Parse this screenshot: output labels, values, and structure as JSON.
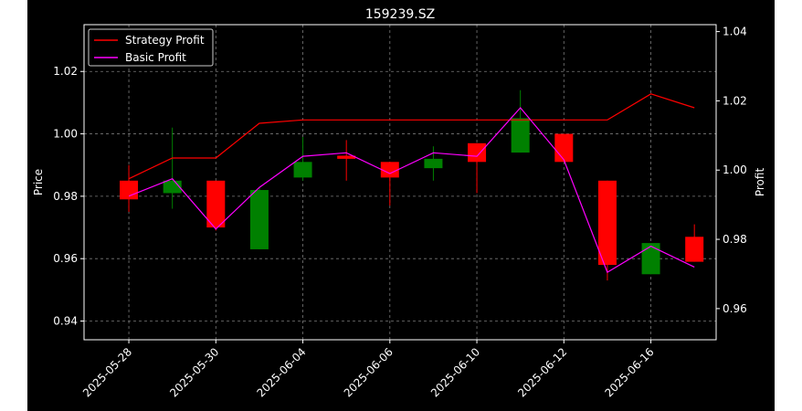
{
  "chart_data": {
    "type": "candlestick",
    "title": "159239.SZ",
    "ylabel": "Price",
    "y2label": "Profit",
    "ylim": [
      0.934,
      1.035
    ],
    "y2lim": [
      0.951,
      1.042
    ],
    "yticks": [
      "0.94",
      "0.96",
      "0.98",
      "1.00",
      "1.02"
    ],
    "y2ticks": [
      "0.96",
      "0.98",
      "1.00",
      "1.02",
      "1.04"
    ],
    "xticks": [
      "2025-05-28",
      "2025-05-30",
      "2025-06-04",
      "2025-06-06",
      "2025-06-10",
      "2025-06-12",
      "2025-06-16"
    ],
    "grid": true,
    "legend_position": "top-left",
    "colors": {
      "up": "#008000",
      "down": "#ff0000",
      "strategy": "#ff0000",
      "basic": "#ff00ff",
      "background": "#000000",
      "text": "#ffffff"
    },
    "candles": [
      {
        "date": "2025-05-28",
        "open": 0.985,
        "close": 0.979,
        "high": 0.99,
        "low": 0.975
      },
      {
        "date": "2025-05-29",
        "open": 0.981,
        "close": 0.985,
        "high": 1.002,
        "low": 0.976
      },
      {
        "date": "2025-05-30",
        "open": 0.985,
        "close": 0.97,
        "high": 0.985,
        "low": 0.969
      },
      {
        "date": "2025-06-03",
        "open": 0.963,
        "close": 0.982,
        "high": 0.983,
        "low": 0.963
      },
      {
        "date": "2025-06-04",
        "open": 0.986,
        "close": 0.991,
        "high": 0.999,
        "low": 0.985
      },
      {
        "date": "2025-06-05",
        "open": 0.993,
        "close": 0.992,
        "high": 0.998,
        "low": 0.985
      },
      {
        "date": "2025-06-06",
        "open": 0.991,
        "close": 0.986,
        "high": 0.991,
        "low": 0.977
      },
      {
        "date": "2025-06-09",
        "open": 0.989,
        "close": 0.992,
        "high": 0.996,
        "low": 0.985
      },
      {
        "date": "2025-06-10",
        "open": 0.997,
        "close": 0.991,
        "high": 0.997,
        "low": 0.981
      },
      {
        "date": "2025-06-11",
        "open": 0.994,
        "close": 1.005,
        "high": 1.014,
        "low": 0.994
      },
      {
        "date": "2025-06-12",
        "open": 1.0,
        "close": 0.991,
        "high": 1.0,
        "low": 0.991
      },
      {
        "date": "2025-06-13",
        "open": 0.985,
        "close": 0.958,
        "high": 0.985,
        "low": 0.953
      },
      {
        "date": "2025-06-16",
        "open": 0.955,
        "close": 0.965,
        "high": 0.965,
        "low": 0.955
      },
      {
        "date": "2025-06-17",
        "open": 0.967,
        "close": 0.959,
        "high": 0.971,
        "low": 0.959
      }
    ],
    "series": [
      {
        "name": "Strategy Profit",
        "values": [
          0.9975,
          1.0035,
          1.0035,
          1.0135,
          1.0145,
          1.0145,
          1.0145,
          1.0145,
          1.0145,
          1.0145,
          1.0145,
          1.0145,
          1.022,
          1.018
        ]
      },
      {
        "name": "Basic Profit",
        "values": [
          0.9925,
          0.9975,
          0.983,
          0.995,
          1.004,
          1.005,
          0.999,
          1.005,
          1.004,
          1.018,
          1.003,
          0.9705,
          0.978,
          0.972
        ]
      }
    ]
  }
}
